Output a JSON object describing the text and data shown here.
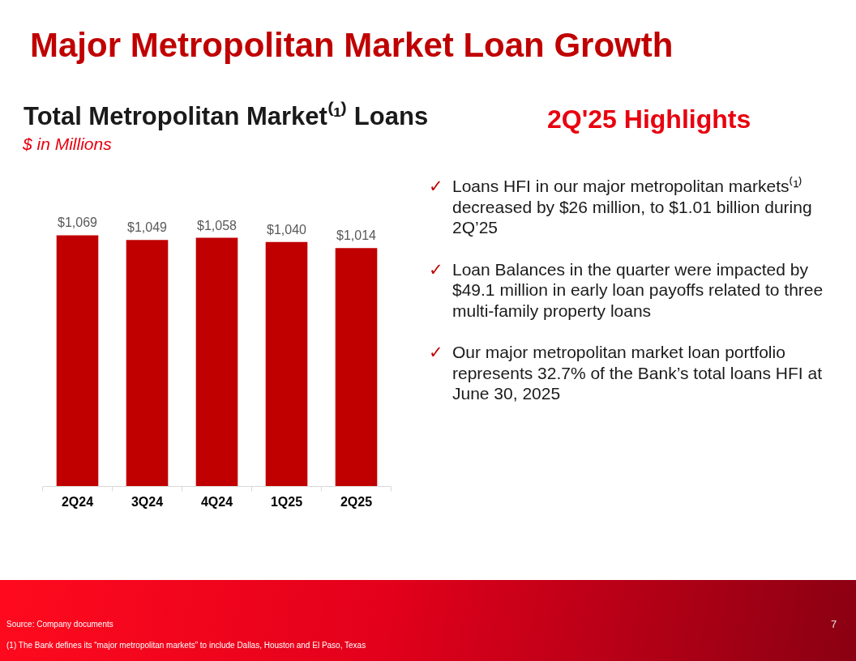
{
  "chart_data": {
    "type": "bar",
    "title": "Total Metropolitan Market⁽¹⁾ Loans",
    "subtitle": "$ in Millions",
    "categories": [
      "2Q24",
      "3Q24",
      "4Q24",
      "1Q25",
      "2Q25"
    ],
    "values": [
      1069,
      1049,
      1058,
      1040,
      1014
    ],
    "value_labels": [
      "$1,069",
      "$1,049",
      "$1,058",
      "$1,040",
      "$1,014"
    ],
    "color": "#c00000",
    "tick_labels": "x",
    "annotations": [
      "Major Metropolitan Market Loan Growth",
      "2Q'25 Highlights",
      "✓ Loans HFI in our major metropolitan markets⁽¹⁾ decreased by $26 million, to $1.01 billion during 2Q’25",
      "✓ Loan Balances in the quarter were impacted by $49.1 million in early loan payoffs related to three multi-family property loans",
      "✓ Our major metropolitan market loan portfolio represents 32.7% of the Bank’s total loans HFI at June 30, 2025",
      "Source: Company documents",
      "7",
      "(1) The Bank defines its “major metropolitan markets” to include Dallas, Houston and El Paso, Texas"
    ]
  }
}
